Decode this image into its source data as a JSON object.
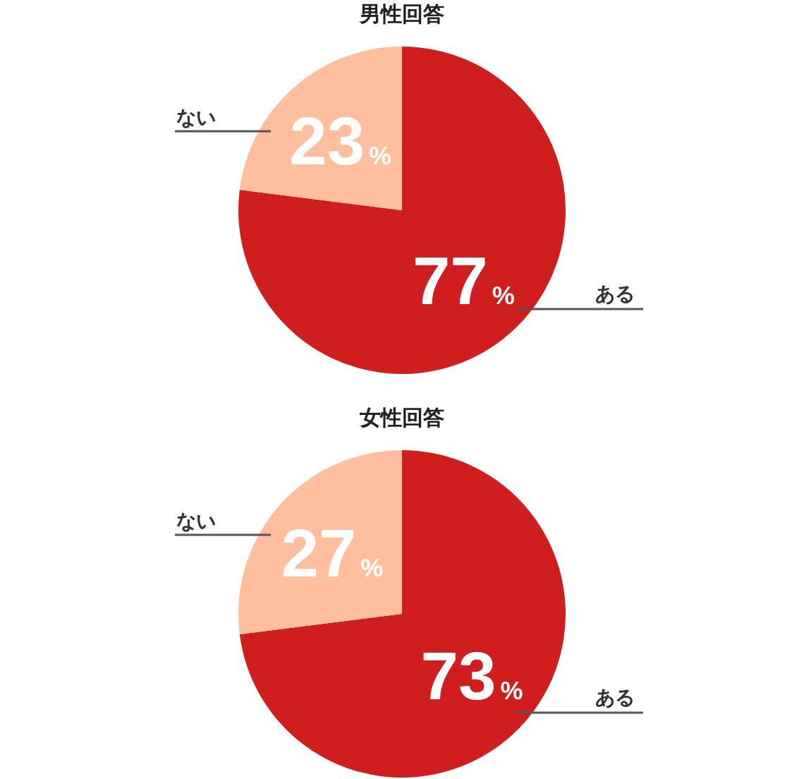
{
  "chart_data": [
    {
      "type": "pie",
      "title": "男性回答",
      "categories": [
        "ある",
        "ない"
      ],
      "values": [
        77,
        23
      ],
      "colors": [
        "#d01e1e",
        "#ffbf9f"
      ],
      "value_labels": [
        "77%",
        "23%"
      ]
    },
    {
      "type": "pie",
      "title": "女性回答",
      "categories": [
        "ある",
        "ない"
      ],
      "values": [
        73,
        27
      ],
      "colors": [
        "#d01e1e",
        "#ffbf9f"
      ],
      "value_labels": [
        "73%",
        "27%"
      ]
    }
  ]
}
